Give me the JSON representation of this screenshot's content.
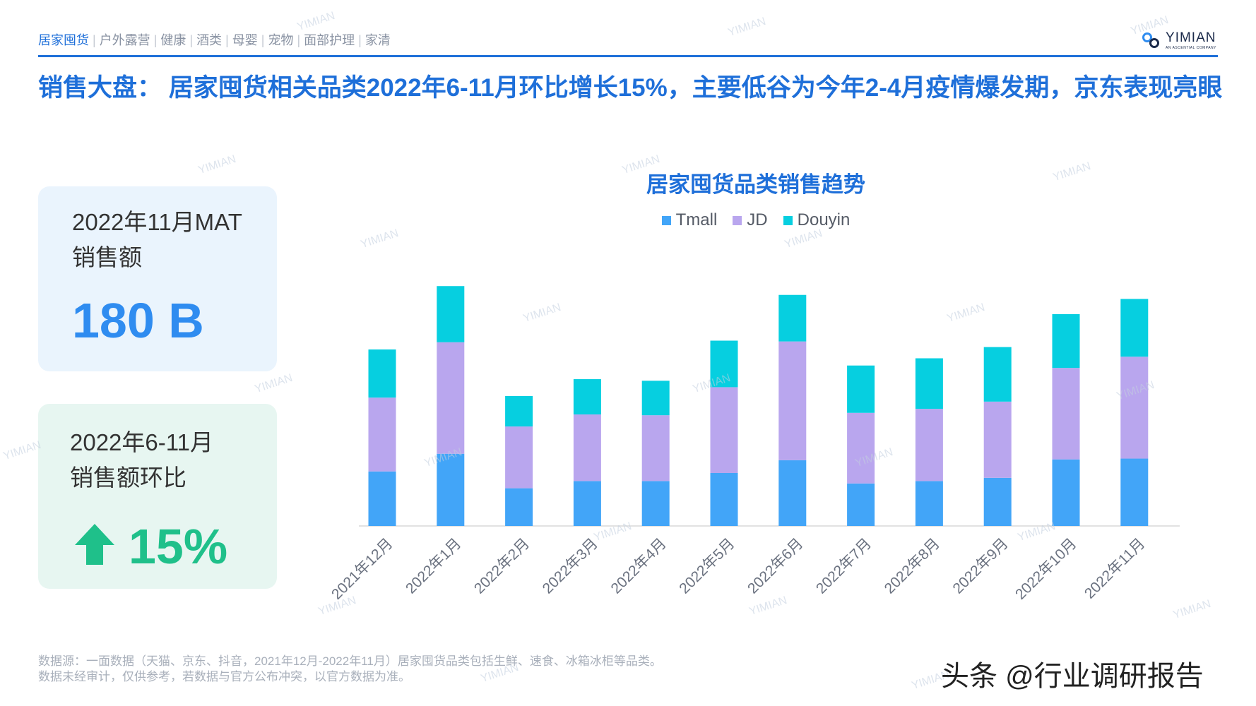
{
  "nav": {
    "items": [
      {
        "label": "居家囤货",
        "active": true
      },
      {
        "label": "户外露营",
        "active": false
      },
      {
        "label": "健康",
        "active": false
      },
      {
        "label": "酒类",
        "active": false
      },
      {
        "label": "母婴",
        "active": false
      },
      {
        "label": "宠物",
        "active": false
      },
      {
        "label": "面部护理",
        "active": false
      },
      {
        "label": "家清",
        "active": false
      }
    ],
    "separator": "|"
  },
  "brand": {
    "name": "YIMIAN",
    "tagline": "AN ASCENTIAL COMPANY",
    "logo_icon": "infinity-link-icon",
    "accent": "#1e6fd9"
  },
  "headline": "销售大盘： 居家囤货相关品类2022年6-11月环比增长15%，主要低谷为今年2-4月疫情爆发期，京东表现亮眼",
  "cards": [
    {
      "label_line1": "2022年11月MAT",
      "label_line2": "销售额",
      "value": "180 B",
      "color": "#2f8cf0"
    },
    {
      "label_line1": "2022年6-11月",
      "label_line2": "销售额环比",
      "value": "15%",
      "icon": "arrow-up-icon",
      "color": "#1fc08a"
    }
  ],
  "chart_data": {
    "type": "bar",
    "stacked": true,
    "title": "居家囤货品类销售趋势",
    "categories": [
      "2021年12月",
      "2022年1月",
      "2022年2月",
      "2022年3月",
      "2022年4月",
      "2022年5月",
      "2022年6月",
      "2022年7月",
      "2022年8月",
      "2022年9月",
      "2022年10月",
      "2022年11月"
    ],
    "series": [
      {
        "name": "Tmall",
        "color": "#42a5f8",
        "values": [
          68,
          90,
          47,
          56,
          56,
          66,
          82,
          53,
          56,
          60,
          83,
          84
        ]
      },
      {
        "name": "JD",
        "color": "#b9a6ee",
        "values": [
          92,
          139,
          77,
          83,
          82,
          107,
          148,
          88,
          90,
          95,
          114,
          127
        ]
      },
      {
        "name": "Douyin",
        "color": "#06cfe0",
        "values": [
          60,
          70,
          38,
          44,
          43,
          58,
          58,
          59,
          63,
          68,
          67,
          72
        ]
      }
    ],
    "ylim": [
      0,
      330
    ],
    "grid": false,
    "legend_position": "top-center"
  },
  "source": {
    "line1": "数据源：一面数据（天猫、京东、抖音，2021年12月-2022年11月）居家囤货品类包括生鲜、速食、冰箱冰柜等品类。",
    "line2": "数据未经审计，仅供参考，若数据与官方公布冲突，以官方数据为准。"
  },
  "credit": "头条 @行业调研报告",
  "watermark": "YIMIAN"
}
